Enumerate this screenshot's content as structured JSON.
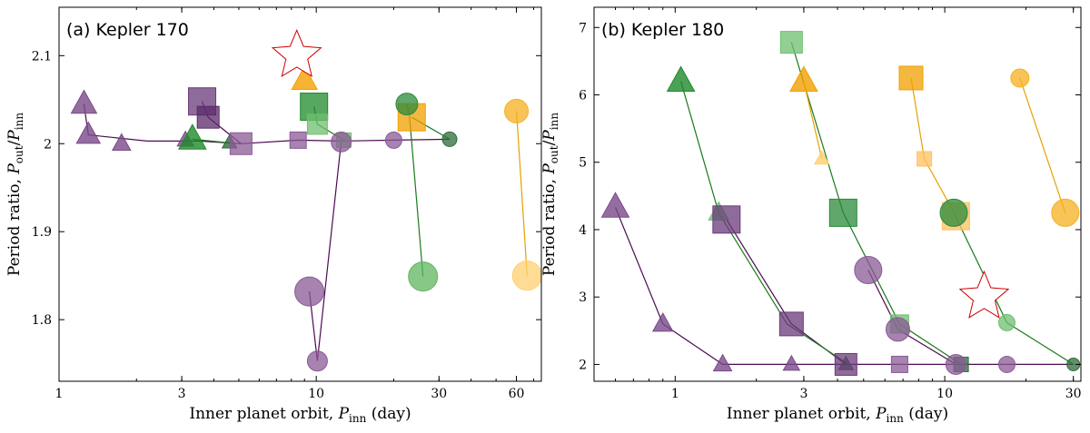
{
  "chart_data": [
    {
      "type": "scatter",
      "title": "(a) Kepler 170",
      "xlabel": "Inner planet orbit,",
      "xlabel_symbol": "P",
      "xlabel_sub": "inn",
      "xlabel_unit": " (day)",
      "ylabel": "Period ratio,",
      "ylabel_expr_num": "P",
      "ylabel_expr_num_sub": "out",
      "ylabel_expr_den": "P",
      "ylabel_expr_den_sub": "inn",
      "xscale": "log",
      "xlim": [
        1,
        75
      ],
      "ylim": [
        1.73,
        2.155
      ],
      "xticks": [
        1,
        3,
        10,
        30,
        60
      ],
      "xtick_labels": [
        "1",
        "3",
        "10",
        "30",
        "60"
      ],
      "yticks": [
        1.8,
        1.9,
        2.0,
        2.1
      ],
      "ytick_labels": [
        "1.8",
        "1.9",
        "2",
        "2.1"
      ],
      "tracks": [
        {
          "color": "#4b0b52",
          "points": [
            [
              1.25,
              2.045
            ],
            [
              1.3,
              2.01
            ],
            [
              2.2,
              2.003
            ],
            [
              3.5,
              2.003
            ],
            [
              5.1,
              2.0
            ],
            [
              8.5,
              2.004
            ],
            [
              12.5,
              2.003
            ],
            [
              20.0,
              2.004
            ],
            [
              33.0,
              2.005
            ]
          ]
        },
        {
          "color": "#4b0b52",
          "points": [
            [
              3.6,
              2.048
            ],
            [
              3.8,
              2.03
            ],
            [
              5.1,
              2.0
            ]
          ]
        },
        {
          "color": "#4b0b52",
          "points": [
            [
              9.4,
              1.832
            ],
            [
              10.1,
              1.753
            ],
            [
              12.5,
              2.002
            ]
          ]
        },
        {
          "color": "#1a7a1a",
          "points": [
            [
              3.3,
              2.005
            ],
            [
              4.6,
              2.001
            ]
          ]
        },
        {
          "color": "#1a7a1a",
          "points": [
            [
              9.8,
              2.042
            ],
            [
              10.1,
              2.022
            ],
            [
              12.8,
              2.004
            ]
          ]
        },
        {
          "color": "#1a7a1a",
          "points": [
            [
              22.5,
              2.045
            ],
            [
              23.0,
              2.034
            ],
            [
              26.0,
              1.849
            ]
          ]
        },
        {
          "color": "#1a7a1a",
          "points": [
            [
              23.5,
              2.03
            ],
            [
              33.0,
              2.005
            ]
          ]
        },
        {
          "color": "#e8a000",
          "points": [
            [
              60.0,
              2.037
            ],
            [
              66.0,
              1.85
            ]
          ]
        }
      ],
      "points": [
        {
          "shape": "triangle",
          "color": "#7b4a8a",
          "x": 1.25,
          "y": 2.045,
          "size": 28
        },
        {
          "shape": "triangle",
          "color": "#7b4a8a",
          "x": 1.3,
          "y": 2.01,
          "size": 26
        },
        {
          "shape": "triangle",
          "color": "#7b4a8a",
          "x": 1.75,
          "y": 2.0,
          "size": 20
        },
        {
          "shape": "triangle",
          "color": "#7b4a8a",
          "x": 3.1,
          "y": 2.004,
          "size": 18
        },
        {
          "shape": "triangle",
          "color": "#2e6b3a",
          "x": 4.6,
          "y": 2.001,
          "size": 16
        },
        {
          "shape": "triangle",
          "color": "#1e8a2a",
          "x": 3.3,
          "y": 2.005,
          "size": 30
        },
        {
          "shape": "square",
          "color": "#6a3a7a",
          "x": 3.6,
          "y": 2.048,
          "size": 30
        },
        {
          "shape": "square",
          "color": "#5a2a6a",
          "x": 3.8,
          "y": 2.03,
          "size": 24
        },
        {
          "shape": "square",
          "color": "#8a5a96",
          "x": 5.1,
          "y": 2.0,
          "size": 24
        },
        {
          "shape": "square",
          "color": "#8a5a96",
          "x": 8.5,
          "y": 2.004,
          "size": 18
        },
        {
          "shape": "square",
          "color": "#1e8a2a",
          "x": 9.8,
          "y": 2.042,
          "size": 30
        },
        {
          "shape": "square",
          "color": "#6fbf6f",
          "x": 10.1,
          "y": 2.022,
          "size": 22
        },
        {
          "shape": "square",
          "color": "#6fbf6f",
          "x": 12.8,
          "y": 2.004,
          "size": 16
        },
        {
          "shape": "square",
          "color": "#f0a000",
          "x": 23.5,
          "y": 2.03,
          "size": 30
        },
        {
          "shape": "circle",
          "color": "#8a5a96",
          "x": 9.4,
          "y": 1.832,
          "size": 32
        },
        {
          "shape": "circle",
          "color": "#8a5a96",
          "x": 10.1,
          "y": 1.753,
          "size": 22
        },
        {
          "shape": "circle",
          "color": "#8a5a96",
          "x": 12.5,
          "y": 2.002,
          "size": 22
        },
        {
          "shape": "circle",
          "color": "#8a5a96",
          "x": 20.0,
          "y": 2.004,
          "size": 18
        },
        {
          "shape": "circle",
          "color": "#2a8a3a",
          "x": 22.5,
          "y": 2.045,
          "size": 24
        },
        {
          "shape": "circle",
          "color": "#5fb55f",
          "x": 26.0,
          "y": 1.849,
          "size": 32
        },
        {
          "shape": "circle",
          "color": "#2e6b3a",
          "x": 33.0,
          "y": 2.005,
          "size": 16
        },
        {
          "shape": "circle",
          "color": "#f5b020",
          "x": 60.0,
          "y": 2.037,
          "size": 26
        },
        {
          "shape": "circle",
          "color": "#ffd070",
          "x": 66.0,
          "y": 1.85,
          "size": 32
        },
        {
          "shape": "triangle",
          "color": "#f5a000",
          "x": 9.0,
          "y": 2.072,
          "size": 28
        },
        {
          "shape": "star",
          "color": "#cc0000",
          "x": 8.4,
          "y": 2.1,
          "size": 56
        }
      ]
    },
    {
      "type": "scatter",
      "title": "(b) Kepler 180",
      "xlabel": "Inner planet orbit,",
      "xlabel_symbol": "P",
      "xlabel_sub": "inn",
      "xlabel_unit": " (day)",
      "ylabel": "Period ratio,",
      "ylabel_expr_num": "P",
      "ylabel_expr_num_sub": "out",
      "ylabel_expr_den": "P",
      "ylabel_expr_den_sub": "inn",
      "xscale": "log",
      "xlim": [
        0.5,
        32
      ],
      "ylim": [
        1.75,
        7.3
      ],
      "xticks": [
        1,
        3,
        10,
        30
      ],
      "xtick_labels": [
        "1",
        "3",
        "10",
        "30"
      ],
      "yticks": [
        2,
        3,
        4,
        5,
        6,
        7
      ],
      "ytick_labels": [
        "2",
        "3",
        "4",
        "5",
        "6",
        "7"
      ],
      "tracks": [
        {
          "color": "#4b0b52",
          "points": [
            [
              0.6,
              4.33
            ],
            [
              0.9,
              2.6
            ],
            [
              1.5,
              2.0
            ],
            [
              4.3,
              2.0
            ],
            [
              6.8,
              2.0
            ],
            [
              11.0,
              2.0
            ],
            [
              17.0,
              2.0
            ],
            [
              30.0,
              2.0
            ]
          ]
        },
        {
          "color": "#4b0b52",
          "points": [
            [
              1.55,
              4.15
            ],
            [
              2.7,
              2.6
            ],
            [
              4.3,
              2.0
            ]
          ]
        },
        {
          "color": "#4b0b52",
          "points": [
            [
              5.2,
              3.4
            ],
            [
              6.7,
              2.52
            ],
            [
              11.0,
              2.0
            ]
          ]
        },
        {
          "color": "#1a7a1a",
          "points": [
            [
              1.05,
              6.2
            ],
            [
              1.45,
              4.25
            ],
            [
              2.6,
              2.6
            ],
            [
              4.4,
              2.0
            ]
          ]
        },
        {
          "color": "#1a7a1a",
          "points": [
            [
              2.7,
              6.78
            ],
            [
              4.2,
              4.25
            ],
            [
              6.8,
              2.6
            ],
            [
              11.5,
              2.0
            ]
          ]
        },
        {
          "color": "#1a7a1a",
          "points": [
            [
              10.8,
              4.25
            ],
            [
              17.0,
              2.62
            ],
            [
              30.0,
              2.0
            ]
          ]
        },
        {
          "color": "#e8a000",
          "points": [
            [
              3.0,
              6.2
            ],
            [
              3.5,
              5.05
            ]
          ]
        },
        {
          "color": "#e8a000",
          "points": [
            [
              7.5,
              6.25
            ],
            [
              8.4,
              5.05
            ],
            [
              11.0,
              4.2
            ]
          ]
        },
        {
          "color": "#e8a000",
          "points": [
            [
              19.0,
              6.25
            ],
            [
              28.0,
              4.25
            ]
          ]
        }
      ],
      "points": [
        {
          "shape": "triangle",
          "color": "#7b4a8a",
          "x": 0.6,
          "y": 4.33,
          "size": 30
        },
        {
          "shape": "triangle",
          "color": "#7b4a8a",
          "x": 0.9,
          "y": 2.6,
          "size": 22
        },
        {
          "shape": "triangle",
          "color": "#7b4a8a",
          "x": 1.5,
          "y": 2.0,
          "size": 20
        },
        {
          "shape": "triangle",
          "color": "#7b4a8a",
          "x": 2.7,
          "y": 2.0,
          "size": 18
        },
        {
          "shape": "triangle",
          "color": "#2e6b3a",
          "x": 4.3,
          "y": 2.0,
          "size": 16
        },
        {
          "shape": "triangle",
          "color": "#1e8a2a",
          "x": 1.05,
          "y": 6.2,
          "size": 30
        },
        {
          "shape": "triangle",
          "color": "#6fbf6f",
          "x": 1.45,
          "y": 4.25,
          "size": 22
        },
        {
          "shape": "triangle",
          "color": "#f0a000",
          "x": 3.0,
          "y": 6.2,
          "size": 30
        },
        {
          "shape": "triangle",
          "color": "#ffd070",
          "x": 3.5,
          "y": 5.05,
          "size": 16
        },
        {
          "shape": "square",
          "color": "#6a3a7a",
          "x": 1.55,
          "y": 4.15,
          "size": 30
        },
        {
          "shape": "square",
          "color": "#6a3a7a",
          "x": 2.7,
          "y": 2.6,
          "size": 26
        },
        {
          "shape": "square",
          "color": "#6a3a7a",
          "x": 4.3,
          "y": 2.0,
          "size": 24
        },
        {
          "shape": "square",
          "color": "#8a5a96",
          "x": 6.8,
          "y": 2.0,
          "size": 18
        },
        {
          "shape": "square",
          "color": "#6fbf6f",
          "x": 2.7,
          "y": 6.78,
          "size": 24
        },
        {
          "shape": "square",
          "color": "#2a8a3a",
          "x": 4.2,
          "y": 4.25,
          "size": 30
        },
        {
          "shape": "square",
          "color": "#6fbf6f",
          "x": 6.8,
          "y": 2.6,
          "size": 20
        },
        {
          "shape": "square",
          "color": "#2e6b3a",
          "x": 11.5,
          "y": 2.0,
          "size": 16
        },
        {
          "shape": "square",
          "color": "#f0a000",
          "x": 7.5,
          "y": 6.25,
          "size": 26
        },
        {
          "shape": "square",
          "color": "#ffc060",
          "x": 8.4,
          "y": 5.05,
          "size": 16
        },
        {
          "shape": "square",
          "color": "#ffc060",
          "x": 11.0,
          "y": 4.2,
          "size": 30
        },
        {
          "shape": "circle",
          "color": "#8a5a96",
          "x": 5.2,
          "y": 3.4,
          "size": 30
        },
        {
          "shape": "circle",
          "color": "#8a5a96",
          "x": 6.7,
          "y": 2.52,
          "size": 26
        },
        {
          "shape": "circle",
          "color": "#8a5a96",
          "x": 11.0,
          "y": 2.0,
          "size": 22
        },
        {
          "shape": "circle",
          "color": "#8a5a96",
          "x": 17.0,
          "y": 2.0,
          "size": 18
        },
        {
          "shape": "circle",
          "color": "#2a8a3a",
          "x": 10.8,
          "y": 4.25,
          "size": 30
        },
        {
          "shape": "circle",
          "color": "#6fbf6f",
          "x": 17.0,
          "y": 2.62,
          "size": 18
        },
        {
          "shape": "circle",
          "color": "#2e6b3a",
          "x": 30.0,
          "y": 2.0,
          "size": 14
        },
        {
          "shape": "circle",
          "color": "#f5b020",
          "x": 19.0,
          "y": 6.25,
          "size": 20
        },
        {
          "shape": "circle",
          "color": "#f5b020",
          "x": 28.0,
          "y": 4.25,
          "size": 30
        },
        {
          "shape": "star",
          "color": "#cc0000",
          "x": 14.0,
          "y": 3.0,
          "size": 56
        }
      ]
    }
  ]
}
